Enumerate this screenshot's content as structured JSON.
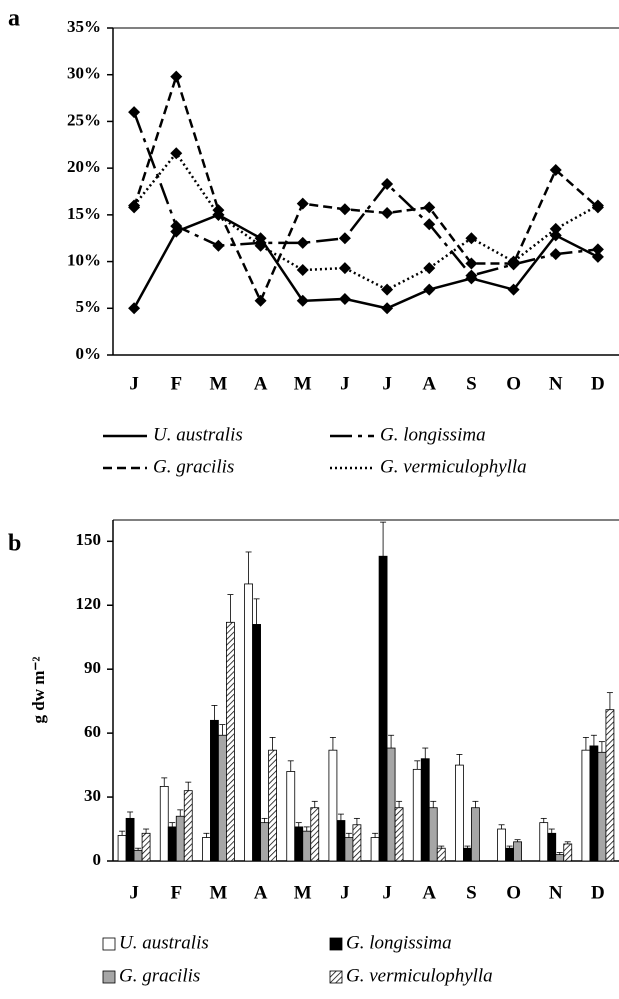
{
  "chart_data": [
    {
      "type": "line",
      "panel": "a",
      "categories": [
        "J",
        "F",
        "M",
        "A",
        "M",
        "J",
        "J",
        "A",
        "S",
        "O",
        "N",
        "D"
      ],
      "ylim": [
        0,
        35
      ],
      "yticks": [
        {
          "value": 0,
          "label": "0%"
        },
        {
          "value": 5,
          "label": "5%"
        },
        {
          "value": 10,
          "label": "10%"
        },
        {
          "value": 15,
          "label": "15%"
        },
        {
          "value": 20,
          "label": "20%"
        },
        {
          "value": 25,
          "label": "25%"
        },
        {
          "value": 30,
          "label": "30%"
        },
        {
          "value": 35,
          "label": "35%"
        }
      ],
      "series": [
        {
          "name": "U. australis",
          "color": "#000000",
          "dash": "solid",
          "values": [
            5,
            13.2,
            15,
            12.5,
            5.8,
            6,
            5,
            7,
            8.2,
            7,
            12.8,
            10.5
          ]
        },
        {
          "name": "G. longissima",
          "color": "#000000",
          "dash": "long-dash",
          "values": [
            26,
            13.8,
            11.7,
            12,
            12,
            12.5,
            18.3,
            14,
            8.5,
            9.7,
            10.8,
            11.3
          ]
        },
        {
          "name": "G. gracilis",
          "color": "#000000",
          "dash": "dash",
          "values": [
            15.8,
            29.8,
            15.5,
            5.8,
            16.2,
            15.6,
            15.2,
            15.8,
            9.8,
            9.8,
            19.8,
            15.8
          ]
        },
        {
          "name": "G. vermiculophylla",
          "color": "#000000",
          "dash": "dot",
          "values": [
            16,
            21.6,
            15,
            11.7,
            9.1,
            9.3,
            7,
            9.3,
            12.5,
            10,
            13.5,
            16
          ]
        }
      ]
    },
    {
      "type": "bar",
      "panel": "b",
      "y_label": "g dw m⁻²",
      "categories": [
        "J",
        "F",
        "M",
        "A",
        "M",
        "J",
        "J",
        "A",
        "S",
        "O",
        "N",
        "D"
      ],
      "ylim": [
        0,
        160
      ],
      "yticks": [
        0,
        30,
        60,
        90,
        120,
        150
      ],
      "series": [
        {
          "name": "U. australis",
          "color": "#ffffff",
          "values": [
            12,
            35,
            11,
            130,
            42,
            52,
            11,
            43,
            45,
            15,
            18,
            52
          ],
          "errors": [
            2,
            4,
            2,
            15,
            5,
            6,
            2,
            4,
            5,
            2,
            2,
            6
          ]
        },
        {
          "name": "G. longissima",
          "color": "#000000",
          "values": [
            20,
            16,
            66,
            111,
            16,
            19,
            143,
            48,
            6,
            6,
            13,
            54
          ],
          "errors": [
            3,
            2,
            7,
            12,
            2,
            3,
            16,
            5,
            1,
            1,
            2,
            5
          ]
        },
        {
          "name": "G. gracilis",
          "color": "#a6a6a6",
          "values": [
            5,
            21,
            59,
            18,
            14,
            11,
            53,
            25,
            25,
            9,
            3,
            51
          ],
          "errors": [
            1,
            3,
            5,
            2,
            2,
            2,
            6,
            3,
            3,
            1,
            1,
            5
          ]
        },
        {
          "name": "G. vermiculophylla",
          "color": "#ffffff",
          "pattern": "hatch",
          "values": [
            13,
            33,
            112,
            52,
            25,
            17,
            25,
            6,
            0,
            0,
            8,
            71
          ],
          "errors": [
            2,
            4,
            13,
            6,
            3,
            3,
            3,
            1,
            0,
            0,
            1,
            8
          ]
        }
      ]
    }
  ]
}
